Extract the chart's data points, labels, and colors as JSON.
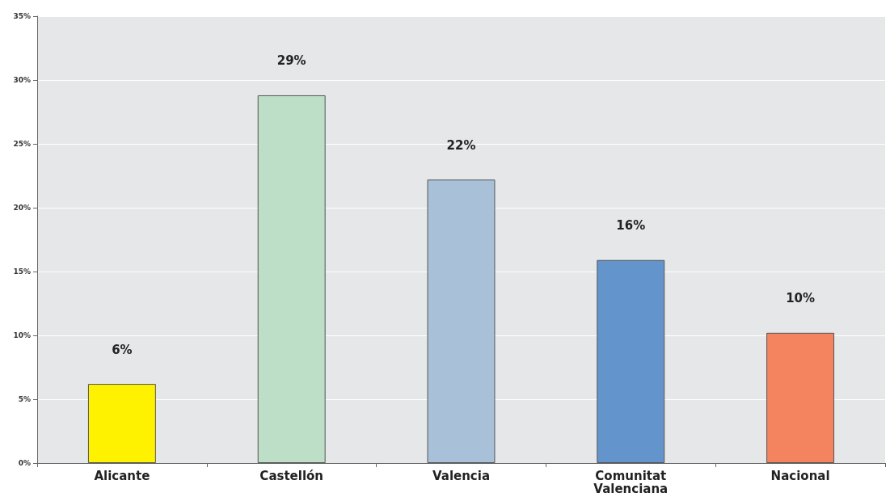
{
  "chart_data": {
    "type": "bar",
    "categories": [
      "Alicante",
      "Castellón",
      "Valencia",
      "Comunitat Valenciana",
      "Nacional"
    ],
    "values": [
      6.2,
      28.8,
      22.2,
      15.9,
      10.2
    ],
    "colors": [
      "#fff200",
      "#bddfc7",
      "#a8c0d8",
      "#6494cc",
      "#f4845f"
    ],
    "value_labels": [
      "6%",
      "29%",
      "22%",
      "16%",
      "10%"
    ],
    "ylim": [
      0,
      35
    ],
    "yticks": [
      {
        "value": 0,
        "label": "0%"
      },
      {
        "value": 5,
        "label": "5%"
      },
      {
        "value": 10,
        "label": "10%"
      },
      {
        "value": 15,
        "label": "15%"
      },
      {
        "value": 20,
        "label": "20%"
      },
      {
        "value": 25,
        "label": "25%"
      },
      {
        "value": 30,
        "label": "30%"
      },
      {
        "value": 35,
        "label": "35%"
      }
    ],
    "grid": "y"
  }
}
